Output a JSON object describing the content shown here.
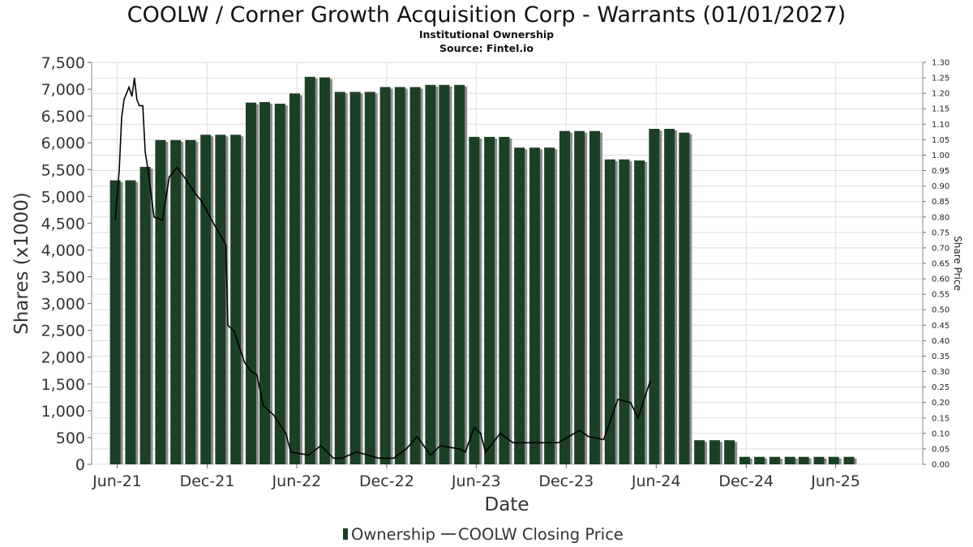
{
  "chart_data": {
    "type": "bar",
    "title": "COOLW / Corner Growth Acquisition Corp - Warrants (01/01/2027)",
    "subtitles": [
      "Institutional Ownership",
      "Source: Fintel.io"
    ],
    "xlabel": "Date",
    "ylabel": "Shares (x1000)",
    "y2label": "Share Price",
    "ylim": [
      0,
      7500
    ],
    "y2lim": [
      0,
      1.3
    ],
    "xlim": [
      "2021-04-10",
      "2025-11-25"
    ],
    "grid": true,
    "legend_position": "bottom-center",
    "colors": {
      "bar": "#1c4025",
      "bar_shadow": "#8c8c8c",
      "line": "#000000",
      "grid": "#dcdcdc"
    },
    "y_ticks": [
      "0",
      "500",
      "1,000",
      "1,500",
      "2,000",
      "2,500",
      "3,000",
      "3,500",
      "4,000",
      "4,500",
      "5,000",
      "5,500",
      "6,000",
      "6,500",
      "7,000",
      "7,500"
    ],
    "y_tick_values": [
      0,
      500,
      1000,
      1500,
      2000,
      2500,
      3000,
      3500,
      4000,
      4500,
      5000,
      5500,
      6000,
      6500,
      7000,
      7500
    ],
    "y2_ticks": [
      "0.00",
      "0.05",
      "0.10",
      "0.15",
      "0.20",
      "0.25",
      "0.30",
      "0.35",
      "0.40",
      "0.45",
      "0.50",
      "0.55",
      "0.60",
      "0.65",
      "0.70",
      "0.75",
      "0.80",
      "0.85",
      "0.90",
      "0.95",
      "1.00",
      "1.05",
      "1.10",
      "1.15",
      "1.20",
      "1.25",
      "1.30"
    ],
    "y2_tick_values": [
      0,
      0.05,
      0.1,
      0.15,
      0.2,
      0.25,
      0.3,
      0.35,
      0.4,
      0.45,
      0.5,
      0.55,
      0.6,
      0.65,
      0.7,
      0.75,
      0.8,
      0.85,
      0.9,
      0.95,
      1.0,
      1.05,
      1.1,
      1.15,
      1.2,
      1.25,
      1.3
    ],
    "x_ticks": [
      {
        "label": "Jun-21",
        "date": "2021-06-01"
      },
      {
        "label": "Dec-21",
        "date": "2021-12-01"
      },
      {
        "label": "Jun-22",
        "date": "2022-06-01"
      },
      {
        "label": "Dec-22",
        "date": "2022-12-01"
      },
      {
        "label": "Jun-23",
        "date": "2023-06-01"
      },
      {
        "label": "Dec-23",
        "date": "2023-12-01"
      },
      {
        "label": "Jun-24",
        "date": "2024-06-01"
      },
      {
        "label": "Dec-24",
        "date": "2024-12-01"
      },
      {
        "label": "Jun-25",
        "date": "2025-06-01"
      }
    ],
    "series": [
      {
        "name": "Ownership",
        "kind": "bar",
        "axis": "left",
        "points": [
          {
            "date": "2021-05-28",
            "value": 5300
          },
          {
            "date": "2021-06-28",
            "value": 5300
          },
          {
            "date": "2021-07-28",
            "value": 5550
          },
          {
            "date": "2021-08-28",
            "value": 6050
          },
          {
            "date": "2021-09-28",
            "value": 6050
          },
          {
            "date": "2021-10-28",
            "value": 6050
          },
          {
            "date": "2021-11-28",
            "value": 6150
          },
          {
            "date": "2021-12-28",
            "value": 6150
          },
          {
            "date": "2022-01-28",
            "value": 6150
          },
          {
            "date": "2022-02-28",
            "value": 6750
          },
          {
            "date": "2022-03-28",
            "value": 6760
          },
          {
            "date": "2022-04-28",
            "value": 6730
          },
          {
            "date": "2022-05-28",
            "value": 6920
          },
          {
            "date": "2022-06-28",
            "value": 7230
          },
          {
            "date": "2022-07-28",
            "value": 7220
          },
          {
            "date": "2022-08-28",
            "value": 6950
          },
          {
            "date": "2022-09-28",
            "value": 6950
          },
          {
            "date": "2022-10-28",
            "value": 6950
          },
          {
            "date": "2022-11-28",
            "value": 7040
          },
          {
            "date": "2022-12-28",
            "value": 7040
          },
          {
            "date": "2023-01-28",
            "value": 7040
          },
          {
            "date": "2023-02-28",
            "value": 7080
          },
          {
            "date": "2023-03-28",
            "value": 7080
          },
          {
            "date": "2023-04-28",
            "value": 7080
          },
          {
            "date": "2023-05-28",
            "value": 6110
          },
          {
            "date": "2023-06-28",
            "value": 6110
          },
          {
            "date": "2023-07-28",
            "value": 6110
          },
          {
            "date": "2023-08-28",
            "value": 5910
          },
          {
            "date": "2023-09-28",
            "value": 5910
          },
          {
            "date": "2023-10-28",
            "value": 5910
          },
          {
            "date": "2023-11-28",
            "value": 6220
          },
          {
            "date": "2023-12-28",
            "value": 6220
          },
          {
            "date": "2024-01-28",
            "value": 6220
          },
          {
            "date": "2024-02-28",
            "value": 5690
          },
          {
            "date": "2024-03-28",
            "value": 5690
          },
          {
            "date": "2024-04-28",
            "value": 5670
          },
          {
            "date": "2024-05-28",
            "value": 6260
          },
          {
            "date": "2024-06-28",
            "value": 6260
          },
          {
            "date": "2024-07-28",
            "value": 6190
          },
          {
            "date": "2024-08-28",
            "value": 450
          },
          {
            "date": "2024-09-28",
            "value": 450
          },
          {
            "date": "2024-10-28",
            "value": 450
          },
          {
            "date": "2024-11-28",
            "value": 140
          },
          {
            "date": "2024-12-28",
            "value": 140
          },
          {
            "date": "2025-01-28",
            "value": 140
          },
          {
            "date": "2025-02-28",
            "value": 140
          },
          {
            "date": "2025-03-28",
            "value": 140
          },
          {
            "date": "2025-04-28",
            "value": 140
          },
          {
            "date": "2025-05-28",
            "value": 140
          },
          {
            "date": "2025-06-28",
            "value": 140
          }
        ]
      },
      {
        "name": "COOLW Closing Price",
        "kind": "line",
        "axis": "right",
        "points": [
          {
            "date": "2021-05-28",
            "value": 0.79
          },
          {
            "date": "2021-06-05",
            "value": 0.95
          },
          {
            "date": "2021-06-10",
            "value": 1.12
          },
          {
            "date": "2021-06-15",
            "value": 1.18
          },
          {
            "date": "2021-06-25",
            "value": 1.22
          },
          {
            "date": "2021-07-01",
            "value": 1.19
          },
          {
            "date": "2021-07-06",
            "value": 1.25
          },
          {
            "date": "2021-07-11",
            "value": 1.18
          },
          {
            "date": "2021-07-16",
            "value": 1.16
          },
          {
            "date": "2021-07-23",
            "value": 1.16
          },
          {
            "date": "2021-07-28",
            "value": 1.01
          },
          {
            "date": "2021-08-03",
            "value": 0.95
          },
          {
            "date": "2021-08-15",
            "value": 0.8
          },
          {
            "date": "2021-09-01",
            "value": 0.79
          },
          {
            "date": "2021-09-15",
            "value": 0.93
          },
          {
            "date": "2021-10-01",
            "value": 0.96
          },
          {
            "date": "2021-10-15",
            "value": 0.93
          },
          {
            "date": "2021-11-05",
            "value": 0.88
          },
          {
            "date": "2021-11-20",
            "value": 0.85
          },
          {
            "date": "2021-12-10",
            "value": 0.79
          },
          {
            "date": "2022-01-08",
            "value": 0.71
          },
          {
            "date": "2022-01-12",
            "value": 0.45
          },
          {
            "date": "2022-01-25",
            "value": 0.43
          },
          {
            "date": "2022-02-15",
            "value": 0.33
          },
          {
            "date": "2022-03-01",
            "value": 0.3
          },
          {
            "date": "2022-03-12",
            "value": 0.29
          },
          {
            "date": "2022-03-25",
            "value": 0.19
          },
          {
            "date": "2022-04-15",
            "value": 0.16
          },
          {
            "date": "2022-05-10",
            "value": 0.1
          },
          {
            "date": "2022-05-20",
            "value": 0.04
          },
          {
            "date": "2022-06-25",
            "value": 0.03
          },
          {
            "date": "2022-07-20",
            "value": 0.06
          },
          {
            "date": "2022-08-15",
            "value": 0.02
          },
          {
            "date": "2022-09-01",
            "value": 0.02
          },
          {
            "date": "2022-10-01",
            "value": 0.04
          },
          {
            "date": "2022-11-15",
            "value": 0.02
          },
          {
            "date": "2022-12-15",
            "value": 0.02
          },
          {
            "date": "2023-01-10",
            "value": 0.05
          },
          {
            "date": "2023-02-01",
            "value": 0.09
          },
          {
            "date": "2023-02-28",
            "value": 0.03
          },
          {
            "date": "2023-03-20",
            "value": 0.06
          },
          {
            "date": "2023-04-28",
            "value": 0.05
          },
          {
            "date": "2023-05-10",
            "value": 0.04
          },
          {
            "date": "2023-05-28",
            "value": 0.12
          },
          {
            "date": "2023-06-10",
            "value": 0.1
          },
          {
            "date": "2023-06-20",
            "value": 0.04
          },
          {
            "date": "2023-07-20",
            "value": 0.1
          },
          {
            "date": "2023-08-15",
            "value": 0.07
          },
          {
            "date": "2023-09-15",
            "value": 0.07
          },
          {
            "date": "2023-10-15",
            "value": 0.07
          },
          {
            "date": "2023-11-15",
            "value": 0.07
          },
          {
            "date": "2023-12-28",
            "value": 0.11
          },
          {
            "date": "2024-01-15",
            "value": 0.09
          },
          {
            "date": "2024-02-15",
            "value": 0.08
          },
          {
            "date": "2024-03-15",
            "value": 0.21
          },
          {
            "date": "2024-04-10",
            "value": 0.2
          },
          {
            "date": "2024-04-25",
            "value": 0.15
          },
          {
            "date": "2024-05-20",
            "value": 0.27
          }
        ]
      }
    ]
  },
  "legend": {
    "ownership_label": "Ownership",
    "price_label": "COOLW Closing Price"
  }
}
